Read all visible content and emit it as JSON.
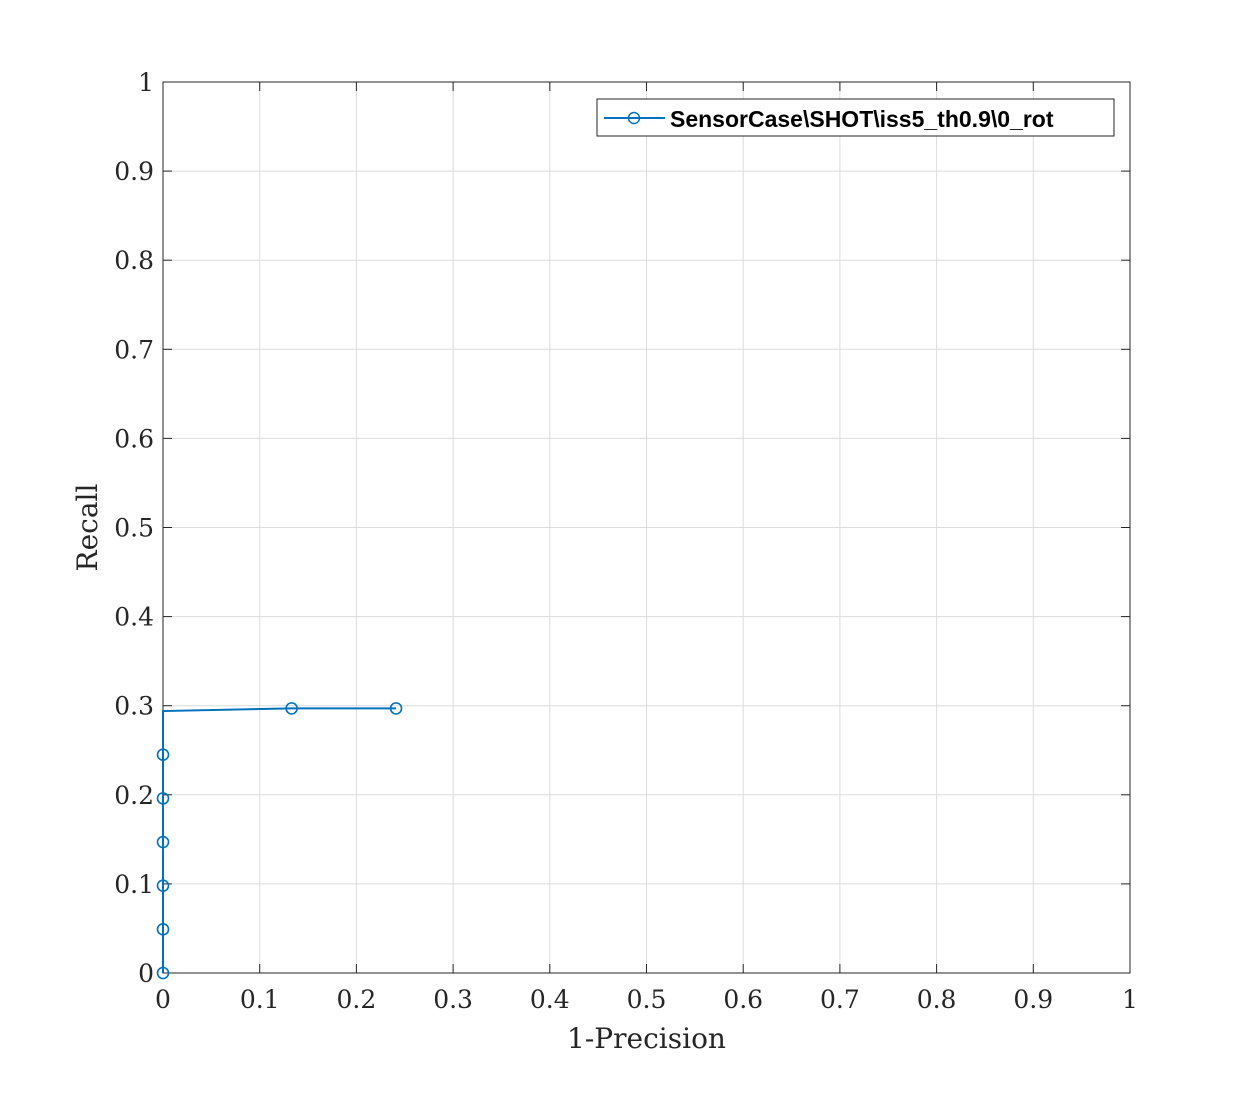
{
  "chart_data": {
    "type": "line",
    "title": "",
    "xlabel": "1-Precision",
    "ylabel": "Recall",
    "xlim": [
      0,
      1
    ],
    "ylim": [
      0,
      1
    ],
    "grid": true,
    "legend_location": "top-right",
    "x_ticks": [
      0,
      0.1,
      0.2,
      0.3,
      0.4,
      0.5,
      0.6,
      0.7,
      0.8,
      0.9,
      1
    ],
    "y_ticks": [
      0,
      0.1,
      0.2,
      0.3,
      0.4,
      0.5,
      0.6,
      0.7,
      0.8,
      0.9,
      1
    ],
    "x_tick_labels": [
      "0",
      "0.1",
      "0.2",
      "0.3",
      "0.4",
      "0.5",
      "0.6",
      "0.7",
      "0.8",
      "0.9",
      "1"
    ],
    "y_tick_labels": [
      "0",
      "0.1",
      "0.2",
      "0.3",
      "0.4",
      "0.5",
      "0.6",
      "0.7",
      "0.8",
      "0.9",
      "1"
    ],
    "series": [
      {
        "name": "SensorCase\\SHOT\\iss5_th0.9\\0_rot",
        "color": "#0072BD",
        "marker": "circle",
        "x": [
          0,
          0,
          0,
          0,
          0,
          0,
          0,
          0.133,
          0.241
        ],
        "y": [
          0,
          0.049,
          0.098,
          0.147,
          0.196,
          0.245,
          0.294,
          0.297,
          0.297
        ],
        "marker_mask": [
          1,
          1,
          1,
          1,
          1,
          1,
          0,
          1,
          1
        ]
      }
    ]
  }
}
